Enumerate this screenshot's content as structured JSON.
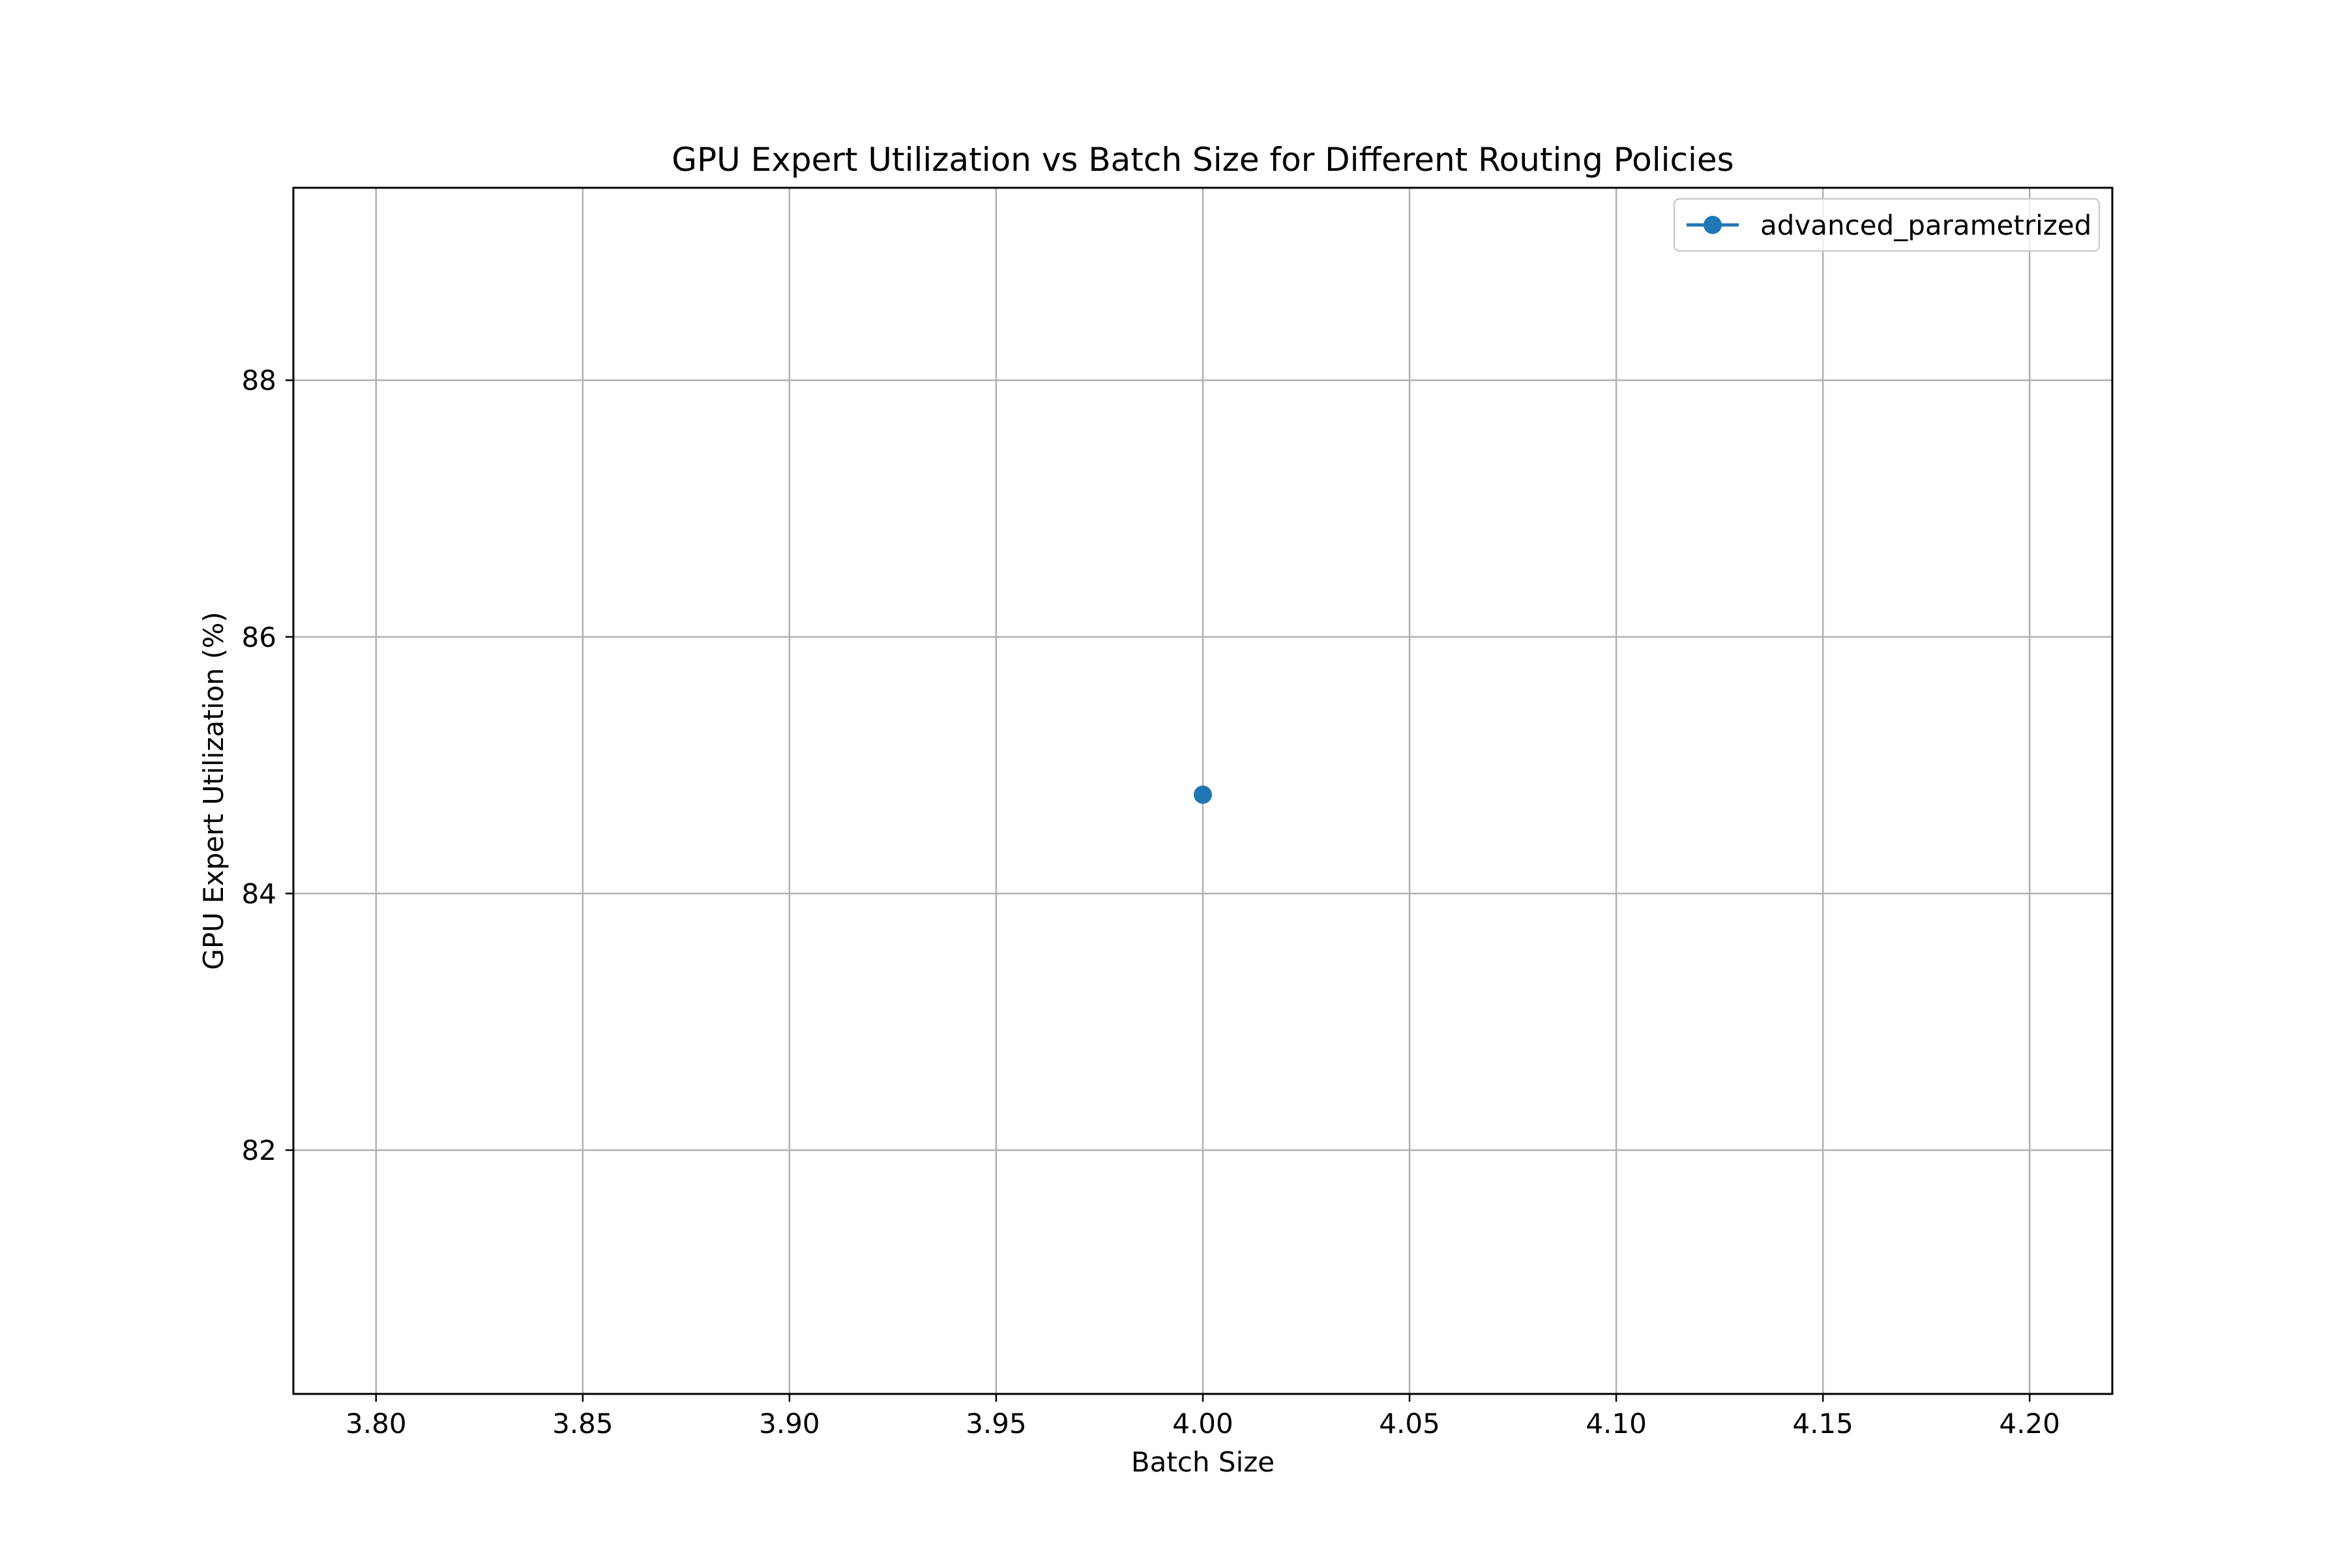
{
  "chart_data": {
    "type": "line",
    "title": "GPU Expert Utilization vs Batch Size for Different Routing Policies",
    "xlabel": "Batch Size",
    "ylabel": "GPU Expert Utilization (%)",
    "xlim": [
      3.78,
      4.22
    ],
    "ylim": [
      80.1,
      89.5
    ],
    "xticks": [
      "3.80",
      "3.85",
      "3.90",
      "3.95",
      "4.00",
      "4.05",
      "4.10",
      "4.15",
      "4.20"
    ],
    "xtick_values": [
      3.8,
      3.85,
      3.9,
      3.95,
      4.0,
      4.05,
      4.1,
      4.15,
      4.2
    ],
    "yticks": [
      "82",
      "84",
      "86",
      "88"
    ],
    "ytick_values": [
      82,
      84,
      86,
      88
    ],
    "grid": true,
    "legend_position": "top-right",
    "series": [
      {
        "name": "advanced_parametrized",
        "color": "#1f77b4",
        "marker": "circle",
        "x": [
          4.0
        ],
        "y": [
          84.77
        ]
      }
    ]
  }
}
